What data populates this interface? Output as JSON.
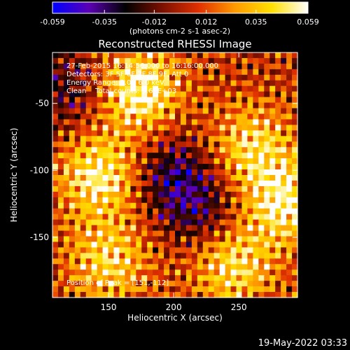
{
  "chart_data": {
    "type": "heatmap",
    "title": "Reconstructed RHESSI Image",
    "xlabel": "Heliocentric X (arcsec)",
    "ylabel": "Heliocentric Y (arcsec)",
    "xlim": [
      107,
      295
    ],
    "ylim": [
      -195,
      -12
    ],
    "x_ticks": [
      150,
      200,
      250
    ],
    "y_ticks": [
      -50,
      -100,
      -150
    ],
    "colorbar": {
      "ticks": [
        "-0.059",
        "-0.035",
        "-0.012",
        "0.012",
        "0.035",
        "0.059"
      ],
      "min": -0.059,
      "max": 0.059,
      "unit_label": "(photons cm-2 s-1 asec-2)",
      "colormap": [
        "#0000ff",
        "#5a00b4",
        "#000000",
        "#7a1000",
        "#e03000",
        "#ff9a00",
        "#ffe000",
        "#ffffff"
      ]
    },
    "annotations": [
      "27-Feb-2015 16:14:56.000 to 16:16:00.000",
      "Detectors: 3F 5F 6F 7F 8F 9F, Att 0",
      "Energy Range: 3.0 - 6.0 keV",
      "Clean    Total counts: 3.61E+03"
    ],
    "peak_label": "Position of Peak = [151,-112]",
    "intensity_features": [
      {
        "x": 173,
        "y": -40,
        "value": 0.055
      },
      {
        "x": 143,
        "y": -104,
        "value": 0.05
      },
      {
        "x": 285,
        "y": -124,
        "value": 0.05
      },
      {
        "x": 245,
        "y": -170,
        "value": 0.045
      },
      {
        "x": 150,
        "y": -168,
        "value": 0.04
      },
      {
        "x": 260,
        "y": -82,
        "value": 0.04
      },
      {
        "x": 120,
        "y": -40,
        "value": -0.025
      },
      {
        "x": 200,
        "y": -105,
        "value": -0.035
      },
      {
        "x": 225,
        "y": -135,
        "value": -0.025
      }
    ]
  },
  "footer": {
    "timestamp": "19-May-2022 03:33"
  }
}
